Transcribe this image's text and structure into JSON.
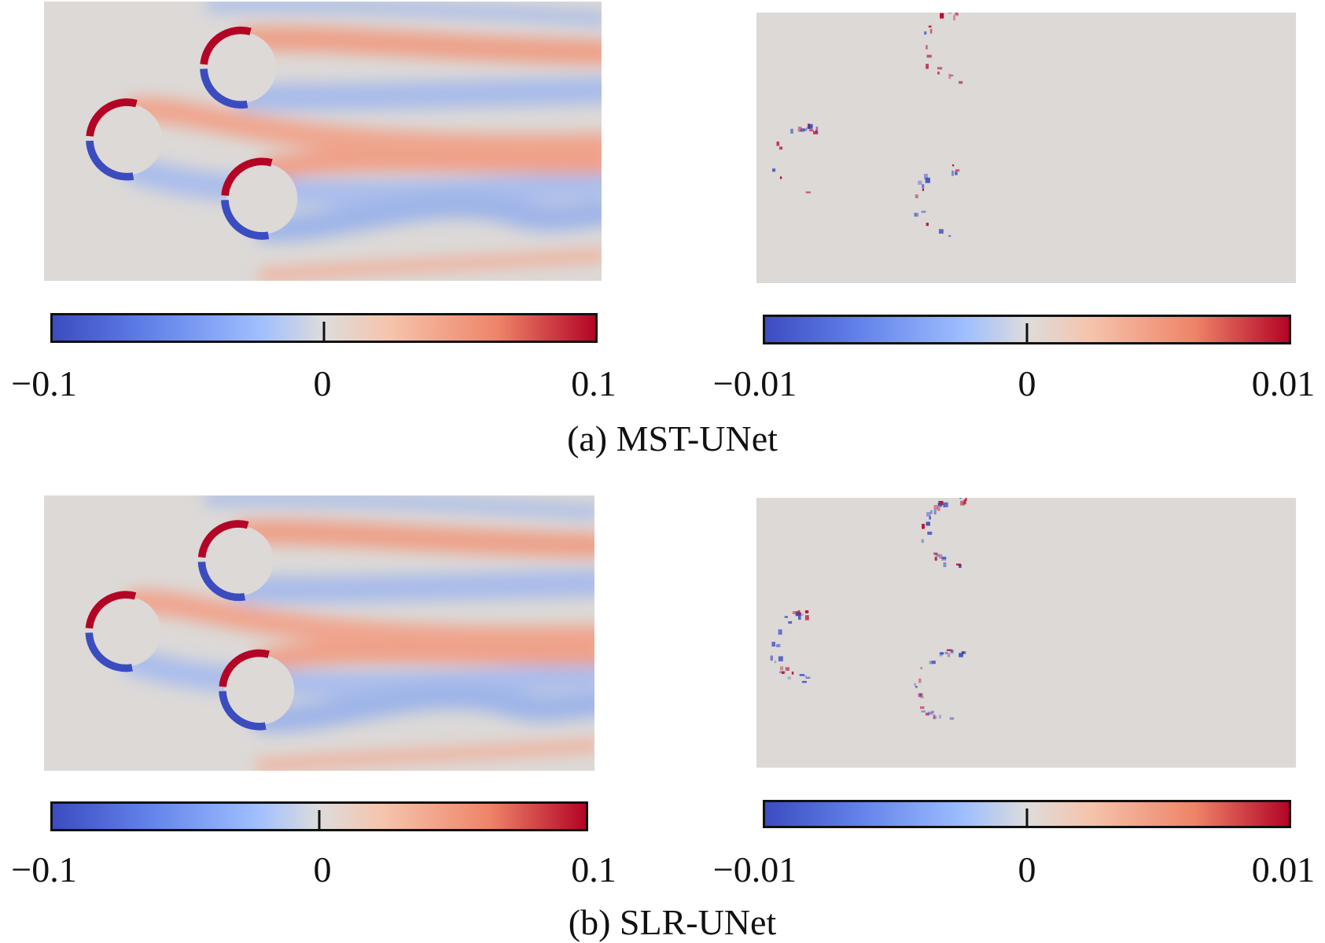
{
  "chart_data": [
    {
      "type": "heatmap",
      "panel": "a",
      "role": "prediction",
      "colorbar": {
        "range": [
          -0.1,
          0.1
        ],
        "ticks": [
          "−0.1",
          "0",
          "0.1"
        ]
      }
    },
    {
      "type": "heatmap",
      "panel": "a",
      "role": "error",
      "colorbar": {
        "range": [
          -0.01,
          0.01
        ],
        "ticks": [
          "−0.01",
          "0",
          "0.01"
        ]
      }
    },
    {
      "type": "heatmap",
      "panel": "b",
      "role": "prediction",
      "colorbar": {
        "range": [
          -0.1,
          0.1
        ],
        "ticks": [
          "−0.1",
          "0",
          "0.1"
        ]
      }
    },
    {
      "type": "heatmap",
      "panel": "b",
      "role": "error",
      "colorbar": {
        "range": [
          -0.01,
          0.01
        ],
        "ticks": [
          "−0.01",
          "0",
          "0.01"
        ]
      }
    }
  ],
  "captions": {
    "a": "(a) MST-UNet",
    "b": "(b) SLR-UNet"
  },
  "colors": {
    "neg": "#3b4cc0",
    "zero": "#dddcdc",
    "pos": "#b40426",
    "background": "#dcd9d7"
  }
}
